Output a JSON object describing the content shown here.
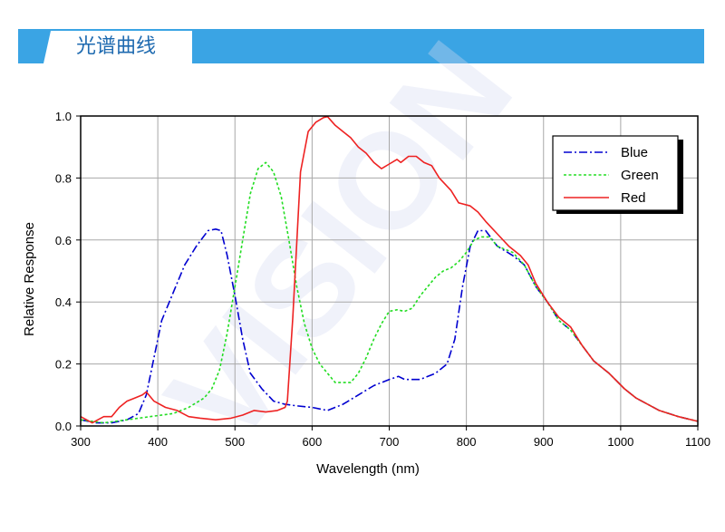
{
  "header": {
    "title": "光谱曲线",
    "band_color": "#3aa4e4",
    "title_color": "#1e6ab0"
  },
  "watermark": {
    "text": "VISION"
  },
  "chart_data": {
    "type": "line",
    "title": "",
    "xlabel": "Wavelength (nm)",
    "ylabel": "Relative Response",
    "xlim": [
      300,
      1100
    ],
    "ylim": [
      0,
      1.0
    ],
    "xticks": [
      300,
      400,
      500,
      600,
      700,
      800,
      900,
      1000,
      1100
    ],
    "xtick_labels": [
      "300",
      "400",
      "500",
      "600",
      "700",
      "800",
      "900",
      "1000",
      "1100"
    ],
    "yticks": [
      0,
      0.2,
      0.4,
      0.6,
      0.8,
      1.0
    ],
    "ytick_labels": [
      "0.0",
      "0.2",
      "0.4",
      "0.6",
      "0.8",
      "1.0"
    ],
    "grid": true,
    "legend_position": "top-right",
    "series": [
      {
        "name": "Blue",
        "color": "#0000d0",
        "dash": "dashdot",
        "points": [
          [
            300,
            0.02
          ],
          [
            320,
            0.01
          ],
          [
            340,
            0.01
          ],
          [
            360,
            0.02
          ],
          [
            375,
            0.04
          ],
          [
            385,
            0.1
          ],
          [
            395,
            0.22
          ],
          [
            405,
            0.34
          ],
          [
            420,
            0.43
          ],
          [
            435,
            0.52
          ],
          [
            450,
            0.58
          ],
          [
            465,
            0.63
          ],
          [
            475,
            0.635
          ],
          [
            482,
            0.63
          ],
          [
            490,
            0.55
          ],
          [
            500,
            0.42
          ],
          [
            510,
            0.28
          ],
          [
            520,
            0.17
          ],
          [
            535,
            0.12
          ],
          [
            550,
            0.08
          ],
          [
            565,
            0.07
          ],
          [
            580,
            0.065
          ],
          [
            600,
            0.06
          ],
          [
            620,
            0.05
          ],
          [
            640,
            0.07
          ],
          [
            660,
            0.1
          ],
          [
            680,
            0.13
          ],
          [
            700,
            0.15
          ],
          [
            712,
            0.16
          ],
          [
            720,
            0.15
          ],
          [
            740,
            0.15
          ],
          [
            760,
            0.17
          ],
          [
            775,
            0.2
          ],
          [
            785,
            0.28
          ],
          [
            795,
            0.45
          ],
          [
            805,
            0.58
          ],
          [
            815,
            0.63
          ],
          [
            825,
            0.63
          ],
          [
            840,
            0.58
          ],
          [
            860,
            0.55
          ],
          [
            875,
            0.52
          ],
          [
            890,
            0.45
          ],
          [
            905,
            0.4
          ],
          [
            920,
            0.34
          ],
          [
            935,
            0.31
          ],
          [
            950,
            0.26
          ],
          [
            965,
            0.21
          ],
          [
            985,
            0.17
          ],
          [
            1005,
            0.12
          ],
          [
            1020,
            0.09
          ],
          [
            1050,
            0.05
          ],
          [
            1075,
            0.03
          ],
          [
            1100,
            0.015
          ]
        ]
      },
      {
        "name": "Green",
        "color": "#22dd22",
        "dash": "dotted",
        "points": [
          [
            300,
            0.02
          ],
          [
            330,
            0.01
          ],
          [
            360,
            0.02
          ],
          [
            390,
            0.03
          ],
          [
            420,
            0.04
          ],
          [
            440,
            0.06
          ],
          [
            460,
            0.09
          ],
          [
            470,
            0.12
          ],
          [
            480,
            0.18
          ],
          [
            490,
            0.3
          ],
          [
            500,
            0.45
          ],
          [
            510,
            0.6
          ],
          [
            520,
            0.75
          ],
          [
            530,
            0.83
          ],
          [
            540,
            0.85
          ],
          [
            550,
            0.82
          ],
          [
            560,
            0.74
          ],
          [
            570,
            0.6
          ],
          [
            580,
            0.45
          ],
          [
            590,
            0.33
          ],
          [
            600,
            0.25
          ],
          [
            610,
            0.2
          ],
          [
            620,
            0.17
          ],
          [
            630,
            0.14
          ],
          [
            640,
            0.14
          ],
          [
            650,
            0.14
          ],
          [
            660,
            0.17
          ],
          [
            670,
            0.22
          ],
          [
            680,
            0.28
          ],
          [
            690,
            0.33
          ],
          [
            700,
            0.37
          ],
          [
            710,
            0.375
          ],
          [
            720,
            0.37
          ],
          [
            730,
            0.38
          ],
          [
            740,
            0.42
          ],
          [
            750,
            0.45
          ],
          [
            760,
            0.48
          ],
          [
            770,
            0.5
          ],
          [
            780,
            0.51
          ],
          [
            790,
            0.53
          ],
          [
            800,
            0.56
          ],
          [
            810,
            0.6
          ],
          [
            820,
            0.61
          ],
          [
            830,
            0.61
          ],
          [
            840,
            0.58
          ],
          [
            860,
            0.56
          ],
          [
            875,
            0.52
          ],
          [
            890,
            0.45
          ],
          [
            905,
            0.4
          ],
          [
            920,
            0.34
          ],
          [
            935,
            0.31
          ],
          [
            950,
            0.26
          ],
          [
            965,
            0.21
          ],
          [
            985,
            0.17
          ],
          [
            1005,
            0.12
          ],
          [
            1020,
            0.09
          ],
          [
            1050,
            0.05
          ],
          [
            1075,
            0.03
          ],
          [
            1100,
            0.015
          ]
        ]
      },
      {
        "name": "Red",
        "color": "#ee2222",
        "dash": "solid",
        "points": [
          [
            300,
            0.03
          ],
          [
            315,
            0.01
          ],
          [
            330,
            0.03
          ],
          [
            340,
            0.03
          ],
          [
            350,
            0.06
          ],
          [
            360,
            0.08
          ],
          [
            370,
            0.09
          ],
          [
            380,
            0.1
          ],
          [
            385,
            0.11
          ],
          [
            395,
            0.08
          ],
          [
            410,
            0.06
          ],
          [
            425,
            0.05
          ],
          [
            440,
            0.03
          ],
          [
            455,
            0.025
          ],
          [
            475,
            0.02
          ],
          [
            495,
            0.025
          ],
          [
            510,
            0.035
          ],
          [
            525,
            0.05
          ],
          [
            540,
            0.045
          ],
          [
            555,
            0.05
          ],
          [
            565,
            0.06
          ],
          [
            568,
            0.08
          ],
          [
            575,
            0.35
          ],
          [
            585,
            0.82
          ],
          [
            595,
            0.95
          ],
          [
            605,
            0.98
          ],
          [
            615,
            0.995
          ],
          [
            620,
            0.998
          ],
          [
            630,
            0.97
          ],
          [
            640,
            0.95
          ],
          [
            650,
            0.93
          ],
          [
            660,
            0.9
          ],
          [
            670,
            0.88
          ],
          [
            680,
            0.85
          ],
          [
            690,
            0.83
          ],
          [
            700,
            0.845
          ],
          [
            710,
            0.86
          ],
          [
            715,
            0.85
          ],
          [
            725,
            0.87
          ],
          [
            735,
            0.87
          ],
          [
            745,
            0.85
          ],
          [
            755,
            0.84
          ],
          [
            765,
            0.8
          ],
          [
            780,
            0.76
          ],
          [
            790,
            0.72
          ],
          [
            805,
            0.71
          ],
          [
            815,
            0.69
          ],
          [
            825,
            0.66
          ],
          [
            840,
            0.62
          ],
          [
            855,
            0.58
          ],
          [
            870,
            0.55
          ],
          [
            880,
            0.52
          ],
          [
            890,
            0.46
          ],
          [
            905,
            0.4
          ],
          [
            920,
            0.35
          ],
          [
            935,
            0.32
          ],
          [
            950,
            0.26
          ],
          [
            965,
            0.21
          ],
          [
            985,
            0.17
          ],
          [
            1005,
            0.12
          ],
          [
            1020,
            0.09
          ],
          [
            1050,
            0.05
          ],
          [
            1075,
            0.03
          ],
          [
            1100,
            0.015
          ]
        ]
      }
    ]
  }
}
